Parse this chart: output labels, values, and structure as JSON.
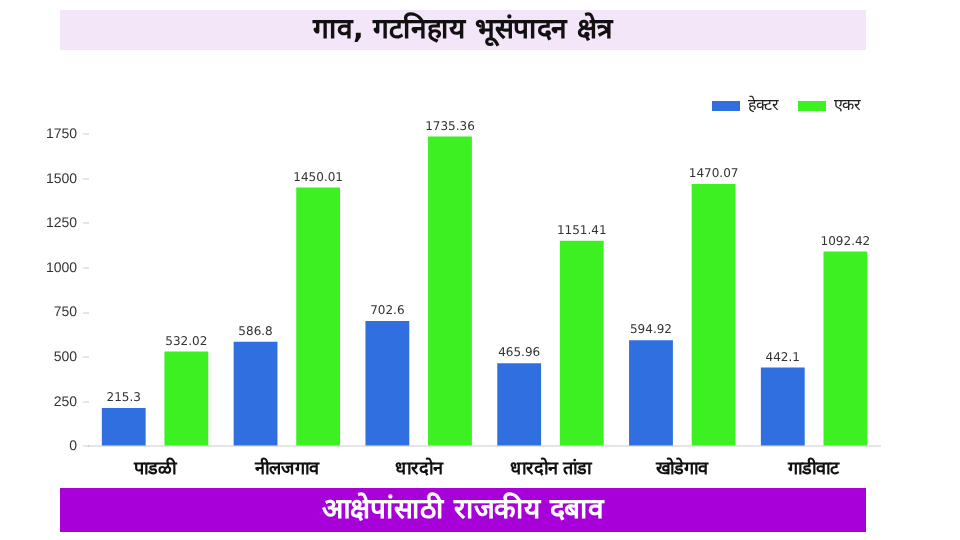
{
  "chart_data": {
    "type": "bar",
    "title": "गाव, गटनिहाय भूसंपादन क्षेत्र",
    "annotations": [
      "आक्षेपांसाठी राजकीय दबाव"
    ],
    "categories": [
      "पाडळी",
      "नीलजगाव",
      "धारदोन",
      "धारदोन तांडा",
      "खोडेगाव",
      "गाडीवाट"
    ],
    "series": [
      {
        "name": "हेक्टर",
        "color": "#2f6fe0",
        "values": [
          215.3,
          586.8,
          702.6,
          465.96,
          594.92,
          442.1
        ]
      },
      {
        "name": "एकर",
        "color": "#3cf022",
        "values": [
          532.02,
          1450.01,
          1735.36,
          1151.41,
          1470.07,
          1092.42
        ]
      }
    ],
    "ylim": [
      0,
      1750
    ],
    "yticks": [
      0,
      250,
      500,
      750,
      1000,
      1250,
      1500,
      1750
    ],
    "grid": false,
    "legend": "top right",
    "data_labels": true
  }
}
